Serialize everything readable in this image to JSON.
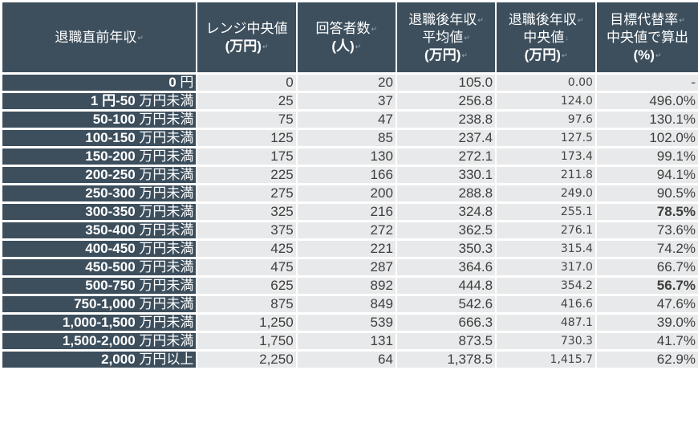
{
  "table": {
    "headers": [
      {
        "lines": [
          "退職直前年収"
        ],
        "unit": ""
      },
      {
        "lines": [
          "レンジ中央値"
        ],
        "unit": "(万円)"
      },
      {
        "lines": [
          "回答者数"
        ],
        "unit": "(人)"
      },
      {
        "lines": [
          "退職後年収",
          "平均値"
        ],
        "unit": "(万円)"
      },
      {
        "lines": [
          "退職後年収",
          "中央値"
        ],
        "unit": "(万円)"
      },
      {
        "lines": [
          "目標代替率",
          "中央値で算出"
        ],
        "unit": "(%)"
      }
    ],
    "rows": [
      {
        "range": "0",
        "suffix": " 円",
        "mid": "0",
        "count": "20",
        "mean": "105.0",
        "median": "0.00",
        "rate": "-",
        "rate_bold": false
      },
      {
        "range": "1 円-50",
        "suffix": " 万円未満",
        "mid": "25",
        "count": "37",
        "mean": "256.8",
        "median": "124.0",
        "rate": "496.0%",
        "rate_bold": false
      },
      {
        "range": "50-100",
        "suffix": " 万円未満",
        "mid": "75",
        "count": "47",
        "mean": "238.8",
        "median": "97.6",
        "rate": "130.1%",
        "rate_bold": false
      },
      {
        "range": "100-150",
        "suffix": " 万円未満",
        "mid": "125",
        "count": "85",
        "mean": "237.4",
        "median": "127.5",
        "rate": "102.0%",
        "rate_bold": false
      },
      {
        "range": "150-200",
        "suffix": " 万円未満",
        "mid": "175",
        "count": "130",
        "mean": "272.1",
        "median": "173.4",
        "rate": "99.1%",
        "rate_bold": false
      },
      {
        "range": "200-250",
        "suffix": " 万円未満",
        "mid": "225",
        "count": "166",
        "mean": "330.1",
        "median": "211.8",
        "rate": "94.1%",
        "rate_bold": false
      },
      {
        "range": "250-300",
        "suffix": " 万円未満",
        "mid": "275",
        "count": "200",
        "mean": "288.8",
        "median": "249.0",
        "rate": "90.5%",
        "rate_bold": false
      },
      {
        "range": "300-350",
        "suffix": " 万円未満",
        "mid": "325",
        "count": "216",
        "mean": "324.8",
        "median": "255.1",
        "rate": "78.5%",
        "rate_bold": true
      },
      {
        "range": "350-400",
        "suffix": " 万円未満",
        "mid": "375",
        "count": "272",
        "mean": "362.5",
        "median": "276.1",
        "rate": "73.6%",
        "rate_bold": false
      },
      {
        "range": "400-450",
        "suffix": " 万円未満",
        "mid": "425",
        "count": "221",
        "mean": "350.3",
        "median": "315.4",
        "rate": "74.2%",
        "rate_bold": false
      },
      {
        "range": "450-500",
        "suffix": " 万円未満",
        "mid": "475",
        "count": "287",
        "mean": "364.6",
        "median": "317.0",
        "rate": "66.7%",
        "rate_bold": false
      },
      {
        "range": "500-750",
        "suffix": " 万円未満",
        "mid": "625",
        "count": "892",
        "mean": "444.8",
        "median": "354.2",
        "rate": "56.7%",
        "rate_bold": true
      },
      {
        "range": "750-1,000",
        "suffix": " 万円未満",
        "mid": "875",
        "count": "849",
        "mean": "542.6",
        "median": "416.6",
        "rate": "47.6%",
        "rate_bold": false
      },
      {
        "range": "1,000-1,500",
        "suffix": " 万円未満",
        "mid": "1,250",
        "count": "539",
        "mean": "666.3",
        "median": "487.1",
        "rate": "39.0%",
        "rate_bold": false
      },
      {
        "range": "1,500-2,000",
        "suffix": " 万円未満",
        "mid": "1,750",
        "count": "131",
        "mean": "873.5",
        "median": "730.3",
        "rate": "41.7%",
        "rate_bold": false
      },
      {
        "range": "2,000",
        "suffix": " 万円以上",
        "mid": "2,250",
        "count": "64",
        "mean": "1,378.5",
        "median": "1,415.7",
        "rate": "62.9%",
        "rate_bold": false
      }
    ]
  },
  "colors": {
    "header_bg": "#3d4f5d",
    "header_text": "#ffffff",
    "cell_bg": "#e8e9ea",
    "cell_text": "#3e3e3e"
  }
}
